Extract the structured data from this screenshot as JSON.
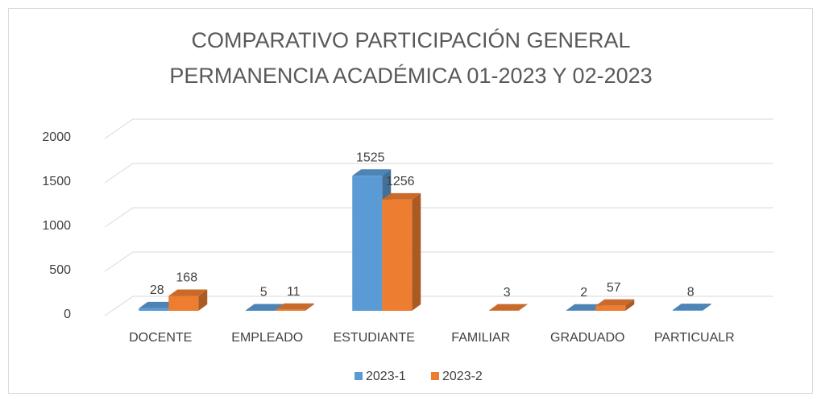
{
  "chart_data": {
    "type": "bar3d",
    "title": [
      "COMPARATIVO PARTICIPACIÓN GENERAL",
      "PERMANENCIA ACADÉMICA 01-2023 Y 02-2023"
    ],
    "categories": [
      "DOCENTE",
      "EMPLEADO",
      "ESTUDIANTE",
      "FAMILIAR",
      "GRADUADO",
      "PARTICUALR"
    ],
    "series": [
      {
        "name": "2023-1",
        "color": "#5b9bd5",
        "values": [
          28,
          5,
          1525,
          null,
          2,
          8
        ]
      },
      {
        "name": "2023-2",
        "color": "#ed7d31",
        "values": [
          168,
          11,
          1256,
          3,
          57,
          null
        ]
      }
    ],
    "ylim": [
      0,
      2000
    ],
    "yticks": [
      0,
      500,
      1000,
      1500,
      2000
    ],
    "grid": true,
    "legend": "bottom"
  }
}
